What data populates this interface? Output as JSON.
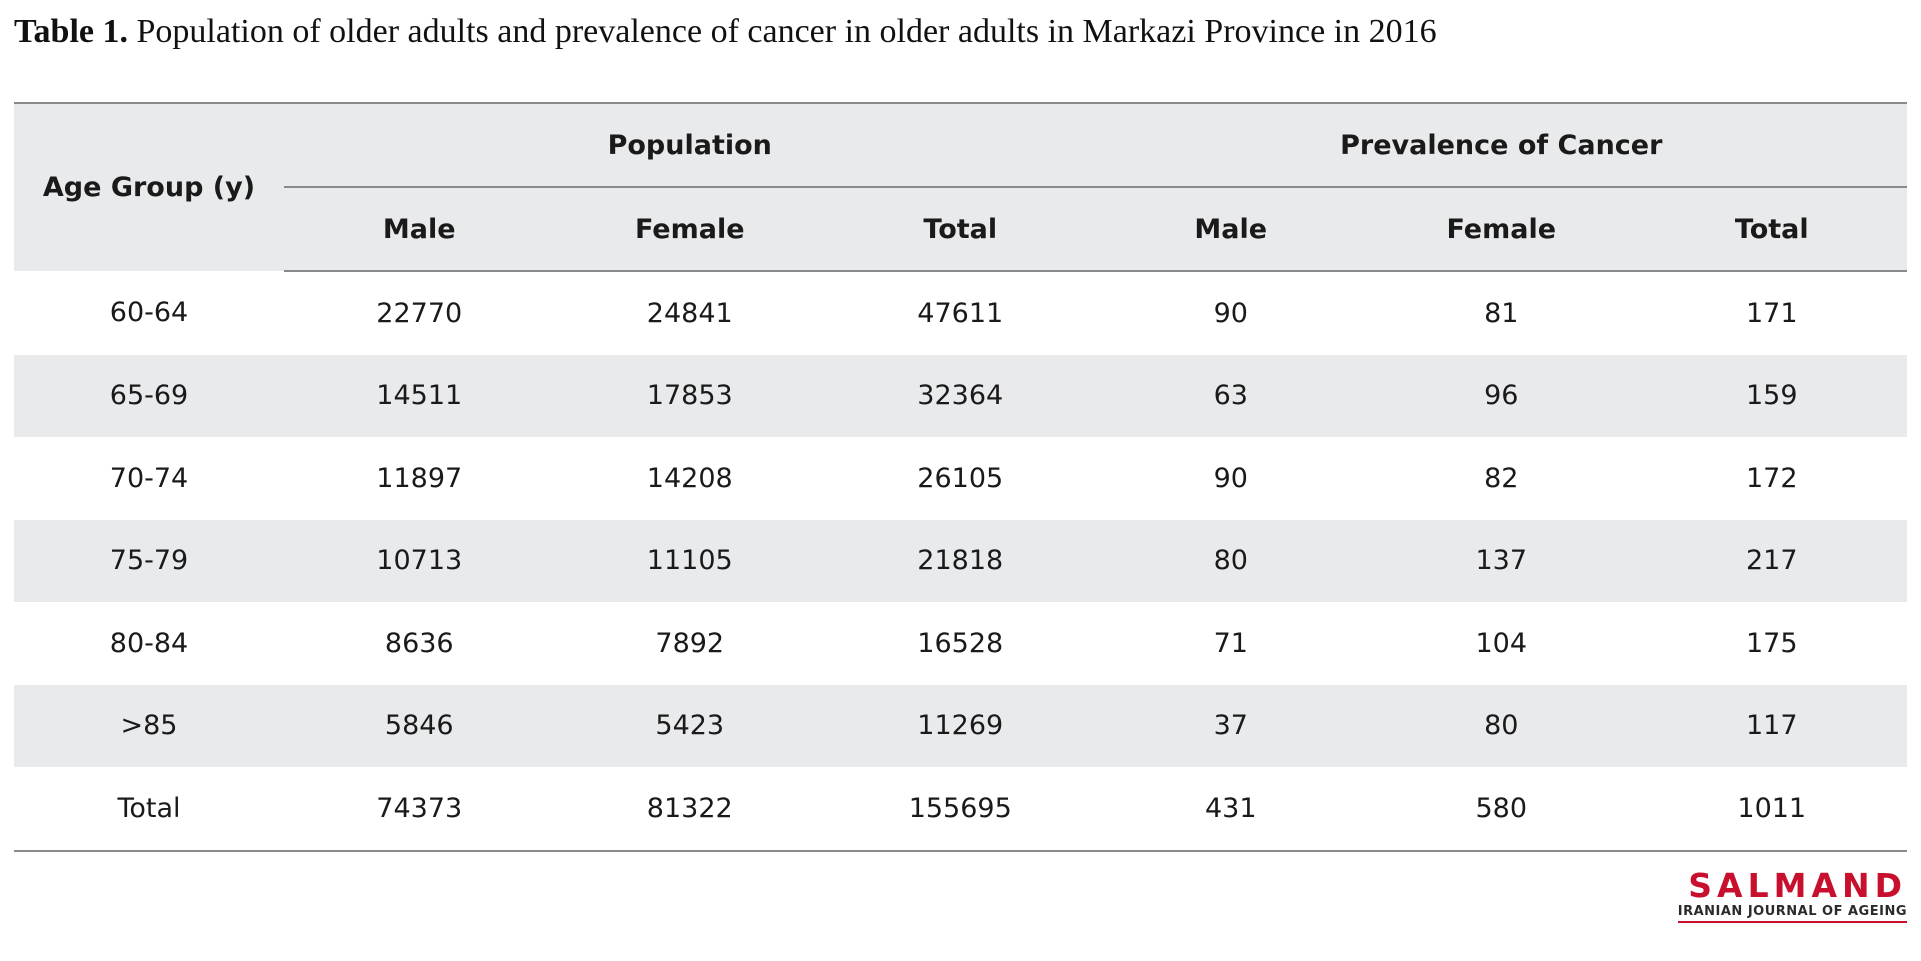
{
  "caption": {
    "lead": "Table 1.",
    "text": " Population of older adults and prevalence of cancer in older adults in Markazi Province in 2016"
  },
  "table": {
    "age_header": "Age Group (y)",
    "groups": [
      "Population",
      "Prevalence of Cancer"
    ],
    "subheaders": [
      "Male",
      "Female",
      "Total",
      "Male",
      "Female",
      "Total"
    ],
    "rows": [
      [
        "60-64",
        "22770",
        "24841",
        "47611",
        "90",
        "81",
        "171"
      ],
      [
        "65-69",
        "14511",
        "17853",
        "32364",
        "63",
        "96",
        "159"
      ],
      [
        "70-74",
        "11897",
        "14208",
        "26105",
        "90",
        "82",
        "172"
      ],
      [
        "75-79",
        "10713",
        "11105",
        "21818",
        "80",
        "137",
        "217"
      ],
      [
        "80-84",
        "8636",
        "7892",
        "16528",
        "71",
        "104",
        "175"
      ],
      [
        ">85",
        "5846",
        "5423",
        "11269",
        "37",
        "80",
        "117"
      ],
      [
        "Total",
        "74373",
        "81322",
        "155695",
        "431",
        "580",
        "1011"
      ]
    ]
  },
  "logo": {
    "name": "SALMAND",
    "subtitle": "IRANIAN JOURNAL OF AGEING"
  },
  "colors": {
    "header_bg": "#e9eaec",
    "rule": "#8a8a8a",
    "brand_red": "#c8102e"
  }
}
